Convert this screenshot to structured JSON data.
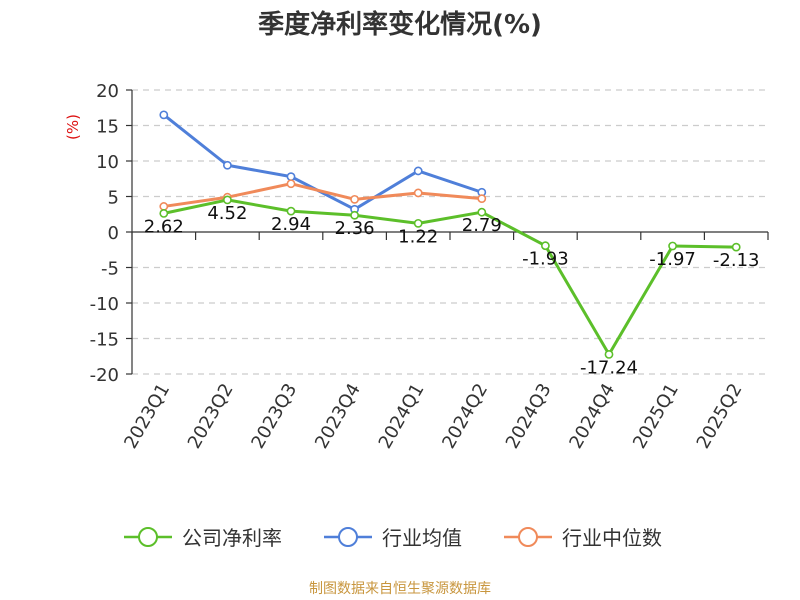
{
  "chart_data": {
    "type": "line",
    "title": "季度净利率变化情况(%)",
    "ylabel": "(%)",
    "categories": [
      "2023Q1",
      "2023Q2",
      "2023Q3",
      "2023Q4",
      "2024Q1",
      "2024Q2",
      "2024Q3",
      "2024Q4",
      "2025Q1",
      "2025Q2"
    ],
    "ylim": [
      -20,
      20
    ],
    "yticks": [
      20,
      15,
      10,
      5,
      0,
      -5,
      -10,
      -15,
      -20
    ],
    "grid": true,
    "legend_position": "bottom",
    "series": [
      {
        "name": "公司净利率",
        "color": "#5cbf2a",
        "values": [
          2.62,
          4.52,
          2.94,
          2.36,
          1.22,
          2.79,
          -1.93,
          -17.24,
          -1.97,
          -2.13
        ],
        "labels": [
          "2.62",
          "4.52",
          "2.94",
          "2.36",
          "1.22",
          "2.79",
          "-1.93",
          "-17.24",
          "-1.97",
          "-2.13"
        ]
      },
      {
        "name": "行业均值",
        "color": "#4f7fd9",
        "values": [
          16.5,
          9.4,
          7.8,
          3.2,
          8.6,
          5.6,
          null,
          null,
          null,
          null
        ]
      },
      {
        "name": "行业中位数",
        "color": "#f08a5a",
        "values": [
          3.6,
          4.9,
          6.8,
          4.6,
          5.5,
          4.7,
          null,
          null,
          null,
          null
        ]
      }
    ]
  },
  "footer": {
    "source": "制图数据来自恒生聚源数据库"
  }
}
